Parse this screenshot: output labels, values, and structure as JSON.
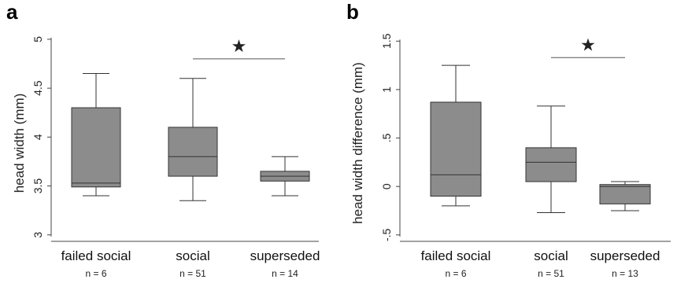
{
  "chart_data": [
    {
      "type": "box",
      "panel": "a",
      "ylabel": "head width (mm)",
      "ylim": [
        2.95,
        5.08
      ],
      "yticks": [
        "3",
        "3.5",
        "4",
        "4.5",
        "5"
      ],
      "ytick_values": [
        3,
        3.5,
        4,
        4.5,
        5
      ],
      "categories": [
        "failed social",
        "social",
        "superseded"
      ],
      "n_labels": [
        "n = 6",
        "n = 51",
        "n = 14"
      ],
      "boxes": [
        {
          "whisker_low": 3.4,
          "q1": 3.49,
          "median": 3.53,
          "q3": 4.3,
          "whisker_high": 4.65
        },
        {
          "whisker_low": 3.35,
          "q1": 3.6,
          "median": 3.8,
          "q3": 4.1,
          "whisker_high": 4.6
        },
        {
          "whisker_low": 3.4,
          "q1": 3.55,
          "median": 3.6,
          "q3": 3.65,
          "whisker_high": 3.8
        }
      ],
      "significance": {
        "from": 1,
        "to": 2,
        "y": 4.8,
        "marker": "★"
      }
    },
    {
      "type": "box",
      "panel": "b",
      "ylabel": "head width difference (mm)",
      "ylim": [
        -0.55,
        1.6
      ],
      "yticks": [
        "-.5",
        "0",
        ".5",
        "1",
        "1.5"
      ],
      "ytick_values": [
        -0.5,
        0,
        0.5,
        1,
        1.5
      ],
      "categories": [
        "failed social",
        "social",
        "superseded"
      ],
      "n_labels": [
        "n = 6",
        "n = 51",
        "n = 13"
      ],
      "boxes": [
        {
          "whisker_low": -0.2,
          "q1": -0.1,
          "median": 0.12,
          "q3": 0.87,
          "whisker_high": 1.25
        },
        {
          "whisker_low": -0.27,
          "q1": 0.05,
          "median": 0.25,
          "q3": 0.4,
          "whisker_high": 0.83
        },
        {
          "whisker_low": -0.25,
          "q1": -0.18,
          "median": 0.0,
          "q3": 0.02,
          "whisker_high": 0.05
        }
      ],
      "significance": {
        "from": 1,
        "to": 2,
        "y": 1.33,
        "marker": "★"
      }
    }
  ]
}
